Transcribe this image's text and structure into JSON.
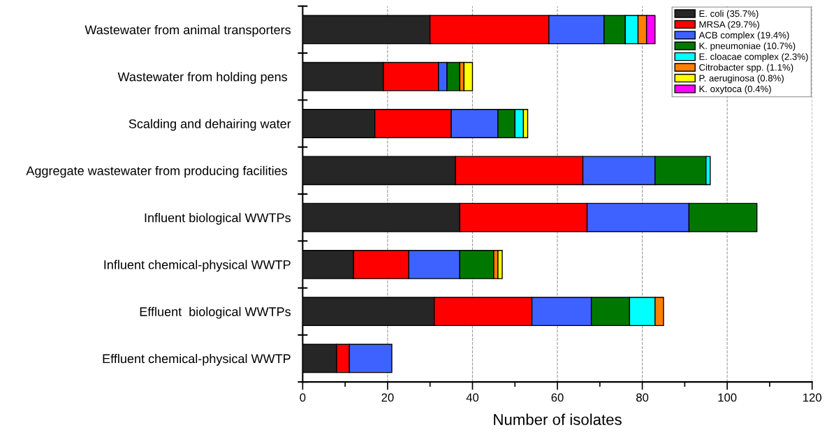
{
  "chart_data": {
    "type": "bar",
    "orientation": "horizontal",
    "stacked": true,
    "xlabel": "Number of isolates",
    "categories": [
      "Wastewater from animal transporters",
      "Wastewater from holding pens ",
      "Scalding and dehairing water",
      "Aggregate wastewater from producing facilities ",
      "Influent biological WWTPs",
      "Influent chemical-physical WWTP",
      "Effluent  biological WWTPs",
      "Effluent chemical-physical WWTP"
    ],
    "series": [
      {
        "name": "E. coli (35.7%)",
        "color": "#262626",
        "values": [
          30,
          19,
          17,
          36,
          37,
          12,
          31,
          8
        ]
      },
      {
        "name": "MRSA (29.7%)",
        "color": "#ff0000",
        "values": [
          28,
          13,
          18,
          30,
          30,
          13,
          23,
          3
        ]
      },
      {
        "name": "ACB complex (19.4%)",
        "color": "#3d62ff",
        "values": [
          13,
          2,
          11,
          17,
          24,
          12,
          14,
          10
        ]
      },
      {
        "name": "K. pneumoniae (10.7%)",
        "color": "#007800",
        "values": [
          5,
          3,
          4,
          12,
          16,
          8,
          9,
          null
        ]
      },
      {
        "name": "E. cloacae complex (2.3%)",
        "color": "#00ffff",
        "values": [
          3,
          null,
          2,
          1,
          null,
          null,
          6,
          null
        ]
      },
      {
        "name": "Citrobacter spp. (1.1%)",
        "color": "#ff7f00",
        "values": [
          2,
          1,
          null,
          null,
          null,
          1,
          2,
          null
        ]
      },
      {
        "name": "P. aeruginosa (0.8%)",
        "color": "#ffff00",
        "values": [
          null,
          2,
          1,
          null,
          null,
          1,
          null,
          null
        ]
      },
      {
        "name": "K. oxytoca (0.4%)",
        "color": "#ff00ff",
        "values": [
          2,
          null,
          null,
          null,
          null,
          null,
          null,
          null
        ]
      }
    ],
    "xlim": [
      0,
      120
    ],
    "xticks": [
      0,
      20,
      40,
      60,
      80,
      100,
      120
    ],
    "grid": "x",
    "legend": "top right"
  }
}
